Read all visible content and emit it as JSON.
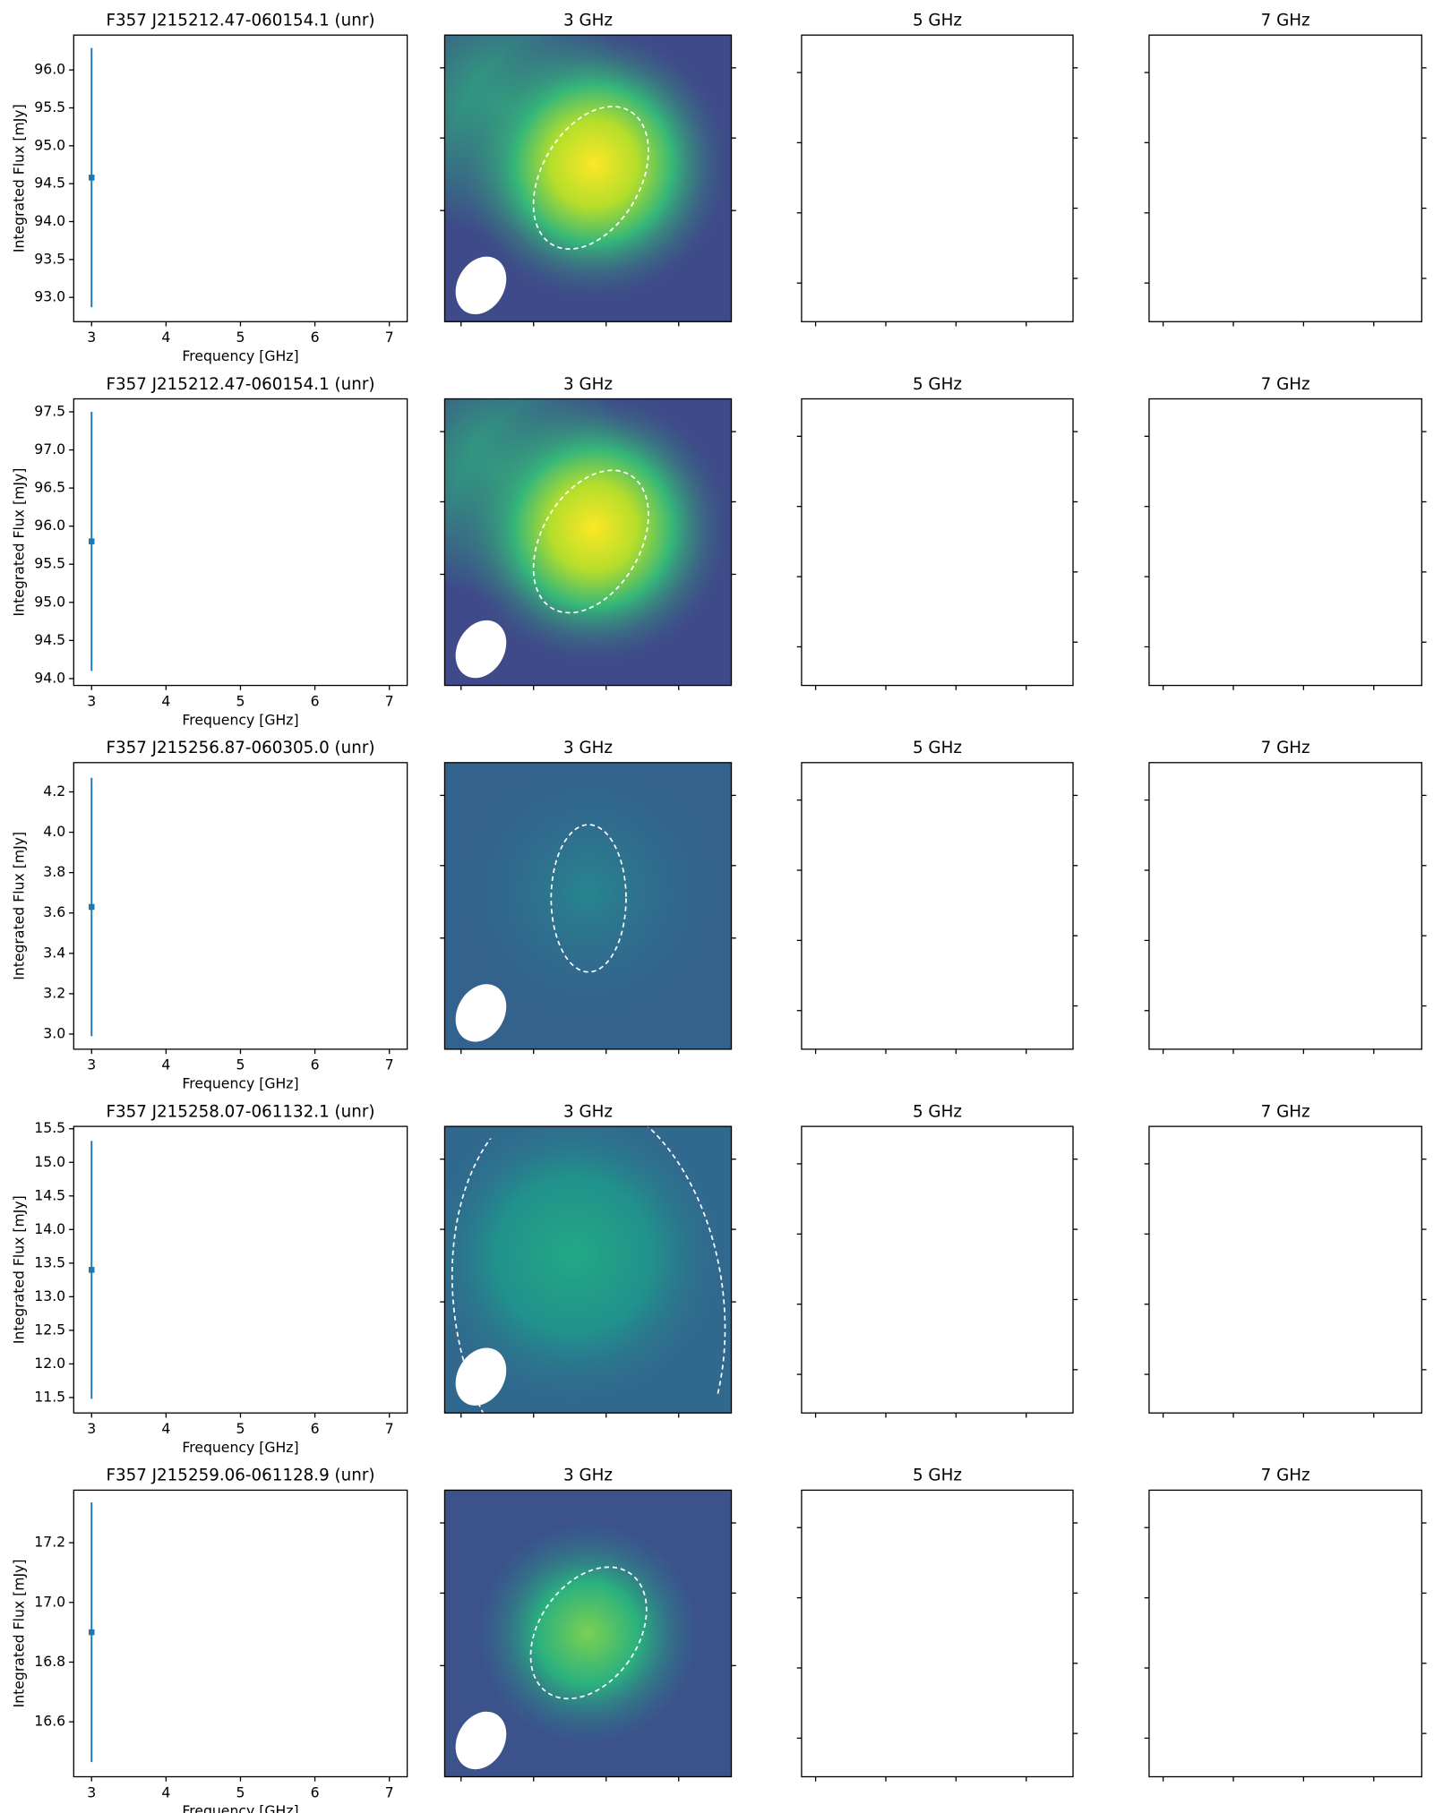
{
  "chart_data": [
    {
      "type": "errorbar",
      "title": "F357 J215212.47-060154.1 (unr)",
      "xlabel": "Frequency [GHz]",
      "ylabel": "Integrated Flux [mJy]",
      "color": "#1f77b4",
      "x": [
        3
      ],
      "values": [
        94.58
      ],
      "errors": [
        1.71
      ],
      "xlim": [
        2.76,
        7.24
      ],
      "xticks": [
        3,
        4,
        5,
        6,
        7
      ],
      "ylim": [
        92.68,
        96.46
      ],
      "yticks": [
        {
          "value": 93,
          "label": "93.0"
        },
        93.5,
        {
          "value": 94,
          "label": "94.0"
        },
        94.5,
        {
          "value": 95,
          "label": "95.0"
        },
        95.5,
        {
          "value": 96,
          "label": "96.0"
        }
      ]
    },
    {
      "type": "image",
      "title": "3 GHz"
    },
    {
      "type": "image",
      "title": "5 GHz"
    },
    {
      "type": "image",
      "title": "7 GHz"
    },
    {
      "type": "errorbar",
      "title": "F357 J215212.47-060154.1 (unr)",
      "xlabel": "Frequency [GHz]",
      "ylabel": "Integrated Flux [mJy]",
      "color": "#1f77b4",
      "x": [
        3
      ],
      "values": [
        95.8
      ],
      "errors": [
        1.7
      ],
      "xlim": [
        2.76,
        7.24
      ],
      "xticks": [
        3,
        4,
        5,
        6,
        7
      ],
      "ylim": [
        93.91,
        97.67
      ],
      "yticks": [
        {
          "value": 94,
          "label": "94.0"
        },
        94.5,
        {
          "value": 95,
          "label": "95.0"
        },
        95.5,
        {
          "value": 96,
          "label": "96.0"
        },
        96.5,
        {
          "value": 97,
          "label": "97.0"
        },
        97.5
      ]
    },
    {
      "type": "image",
      "title": "3 GHz"
    },
    {
      "type": "image",
      "title": "5 GHz"
    },
    {
      "type": "image",
      "title": "7 GHz"
    },
    {
      "type": "errorbar",
      "title": "F357 J215256.87-060305.0 (unr)",
      "xlabel": "Frequency [GHz]",
      "ylabel": "Integrated Flux [mJy]",
      "color": "#1f77b4",
      "x": [
        3
      ],
      "values": [
        3.63
      ],
      "errors": [
        0.64
      ],
      "xlim": [
        2.76,
        7.24
      ],
      "xticks": [
        3,
        4,
        5,
        6,
        7
      ],
      "ylim": [
        2.925,
        4.345
      ],
      "yticks": [
        {
          "value": 3,
          "label": "3.0"
        },
        3.2,
        3.4,
        3.6,
        3.8,
        {
          "value": 4,
          "label": "4.0"
        },
        4.2
      ]
    },
    {
      "type": "image",
      "title": "3 GHz"
    },
    {
      "type": "image",
      "title": "5 GHz"
    },
    {
      "type": "image",
      "title": "7 GHz"
    },
    {
      "type": "errorbar",
      "title": "F357 J215258.07-061132.1 (unr)",
      "xlabel": "Frequency [GHz]",
      "ylabel": "Integrated Flux [mJy]",
      "color": "#1f77b4",
      "x": [
        3
      ],
      "values": [
        13.4
      ],
      "errors": [
        1.92
      ],
      "xlim": [
        2.76,
        7.24
      ],
      "xticks": [
        3,
        4,
        5,
        6,
        7
      ],
      "ylim": [
        11.27,
        15.535
      ],
      "yticks": [
        11.5,
        {
          "value": 12,
          "label": "12.0"
        },
        12.5,
        {
          "value": 13,
          "label": "13.0"
        },
        13.5,
        {
          "value": 14,
          "label": "14.0"
        },
        14.5,
        {
          "value": 15,
          "label": "15.0"
        },
        15.5
      ]
    },
    {
      "type": "image",
      "title": "3 GHz"
    },
    {
      "type": "image",
      "title": "5 GHz"
    },
    {
      "type": "image",
      "title": "7 GHz"
    },
    {
      "type": "errorbar",
      "title": "F357 J215259.06-061128.9 (unr)",
      "xlabel": "Frequency [GHz]",
      "ylabel": "Integrated Flux [mJy]",
      "color": "#1f77b4",
      "x": [
        3
      ],
      "values": [
        16.9
      ],
      "errors": [
        0.435
      ],
      "xlim": [
        2.76,
        7.24
      ],
      "xticks": [
        3,
        4,
        5,
        6,
        7
      ],
      "ylim": [
        16.416,
        17.376
      ],
      "yticks": [
        16.6,
        16.8,
        {
          "value": 17,
          "label": "17.0"
        },
        17.2
      ]
    },
    {
      "type": "image",
      "title": "3 GHz"
    },
    {
      "type": "image",
      "title": "5 GHz"
    },
    {
      "type": "image",
      "title": "7 GHz"
    }
  ]
}
